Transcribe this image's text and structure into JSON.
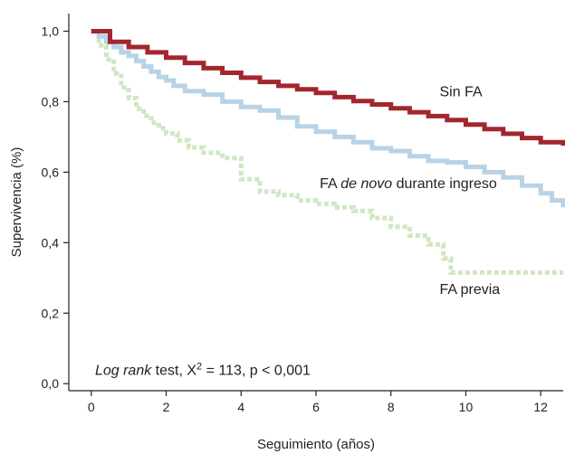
{
  "chart_data": {
    "type": "line",
    "xlabel": "Seguimiento (años)",
    "ylabel": "Supervivencia (%)",
    "xlim": [
      -0.6,
      12.6
    ],
    "ylim": [
      -0.02,
      1.05
    ],
    "xticks": [
      0,
      2,
      4,
      6,
      8,
      10,
      12
    ],
    "yticks": [
      0.0,
      0.2,
      0.4,
      0.6,
      0.8,
      1.0
    ],
    "xtick_labels": [
      "0",
      "2",
      "4",
      "6",
      "8",
      "10",
      "12"
    ],
    "ytick_labels": [
      "0,0",
      "0,2",
      "0,4",
      "0,6",
      "0,8",
      "1,0"
    ],
    "grid": false,
    "legend": "none",
    "series": [
      {
        "name": "Sin FA",
        "color": "#a3262e",
        "style": "solid",
        "x": [
          0,
          0.5,
          1,
          1.5,
          2,
          2.5,
          3,
          3.5,
          4,
          4.5,
          5,
          5.5,
          6,
          6.5,
          7,
          7.5,
          8,
          8.5,
          9,
          9.5,
          10,
          10.5,
          11,
          11.5,
          12,
          12.6
        ],
        "y": [
          1.0,
          0.97,
          0.955,
          0.94,
          0.925,
          0.91,
          0.895,
          0.882,
          0.868,
          0.856,
          0.845,
          0.835,
          0.825,
          0.813,
          0.802,
          0.792,
          0.781,
          0.77,
          0.759,
          0.748,
          0.735,
          0.722,
          0.709,
          0.697,
          0.685,
          0.675
        ]
      },
      {
        "name": "FA de novo durante ingreso",
        "color": "#b8d3e6",
        "style": "solid",
        "x": [
          0,
          0.2,
          0.4,
          0.6,
          0.8,
          1.0,
          1.2,
          1.4,
          1.6,
          1.8,
          2.0,
          2.2,
          2.5,
          3.0,
          3.5,
          4.0,
          4.5,
          5.0,
          5.5,
          6.0,
          6.5,
          7.0,
          7.5,
          8.0,
          8.5,
          9.0,
          9.5,
          10.0,
          10.5,
          11.0,
          11.5,
          12.0,
          12.3,
          12.6
        ],
        "y": [
          1.0,
          0.985,
          0.97,
          0.955,
          0.94,
          0.93,
          0.915,
          0.9,
          0.885,
          0.87,
          0.86,
          0.845,
          0.83,
          0.82,
          0.8,
          0.785,
          0.775,
          0.755,
          0.73,
          0.715,
          0.7,
          0.685,
          0.668,
          0.66,
          0.645,
          0.632,
          0.628,
          0.615,
          0.6,
          0.585,
          0.562,
          0.54,
          0.52,
          0.5
        ]
      },
      {
        "name": "FA previa",
        "color": "#cfe7c3",
        "style": "dotted",
        "x": [
          0,
          0.2,
          0.4,
          0.6,
          0.8,
          1.0,
          1.2,
          1.4,
          1.6,
          1.8,
          2.0,
          2.3,
          2.6,
          3.0,
          3.5,
          4.0,
          4.5,
          5.0,
          5.5,
          6.0,
          6.5,
          7.0,
          7.5,
          8.0,
          8.5,
          9.0,
          9.4,
          9.6,
          10.0,
          11.0,
          12.0,
          12.6
        ],
        "y": [
          1.0,
          0.96,
          0.92,
          0.88,
          0.84,
          0.81,
          0.78,
          0.76,
          0.74,
          0.725,
          0.71,
          0.69,
          0.67,
          0.655,
          0.64,
          0.58,
          0.545,
          0.535,
          0.52,
          0.51,
          0.5,
          0.49,
          0.47,
          0.445,
          0.42,
          0.395,
          0.355,
          0.315,
          0.315,
          0.315,
          0.315,
          0.315
        ]
      }
    ],
    "annotations": {
      "series_labels": [
        {
          "text": "Sin FA",
          "x": 9.3,
          "y": 0.815
        },
        {
          "prefix": "FA ",
          "italic": "de novo",
          "suffix": " durante ingreso",
          "x": 6.1,
          "y": 0.555
        },
        {
          "text": "FA previa",
          "x": 9.3,
          "y": 0.255
        }
      ],
      "stat_text": {
        "italic": "Log rank",
        "text1": " test, X",
        "sup": "2",
        "text2": " = 113, p < 0,001",
        "x": 0.1,
        "y": 0.02
      }
    }
  }
}
